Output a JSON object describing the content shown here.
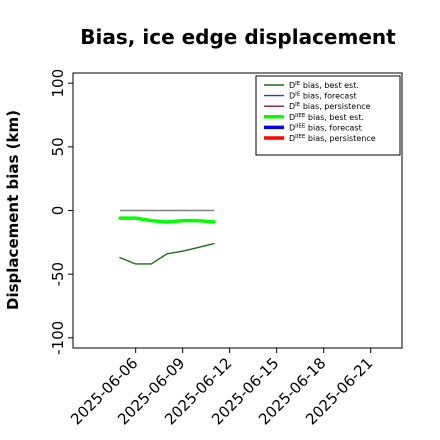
{
  "chart_data": {
    "type": "line",
    "title": "Bias, ice edge displacement",
    "xlabel": "",
    "ylabel": "Displacement bias (km)",
    "ylim": [
      -108,
      108
    ],
    "xlim": [
      "2025-06-02",
      "2025-06-23"
    ],
    "y_ticks": [
      "100",
      "50",
      "0",
      "-50",
      "-100"
    ],
    "x_ticks": [
      {
        "label": "2025-06-06",
        "date": "2025-06-06",
        "color": "#000000"
      },
      {
        "label": "2025-06-09",
        "date": "2025-06-09",
        "color": "#000000"
      },
      {
        "label": "2025-06-12",
        "date": "2025-06-12",
        "color": "#228B22"
      },
      {
        "label": "2025-06-15",
        "date": "2025-06-15",
        "color": "#000000"
      },
      {
        "label": "2025-06-18",
        "date": "2025-06-18",
        "color": "#000000"
      },
      {
        "label": "2025-06-21",
        "date": "2025-06-21",
        "color": "#000000"
      }
    ],
    "grid": false,
    "legend_position": "top-right",
    "series": [
      {
        "name": "D^IE bias, best est.",
        "sup": "IE",
        "label": " bias, best est.",
        "color": "#1a6e1a",
        "width": 1.4,
        "x": [
          "2025-06-05",
          "2025-06-06",
          "2025-06-07",
          "2025-06-08",
          "2025-06-09",
          "2025-06-10",
          "2025-06-11"
        ],
        "y": [
          -37,
          -42,
          -42,
          -34,
          -32,
          -29,
          -26
        ]
      },
      {
        "name": "D^IE bias, forecast",
        "sup": "IE",
        "label": " bias, forecast",
        "color": "#1f3fbf",
        "width": 1.4,
        "x": [],
        "y": []
      },
      {
        "name": "D^IE bias, persistence",
        "sup": "IE",
        "label": " bias, persistence",
        "color": "#8b1a3a",
        "width": 1.4,
        "x": [],
        "y": []
      },
      {
        "name": "D^IIEE bias, best est.",
        "sup": "IIEE",
        "label": " bias, best est.",
        "color": "#00ff00",
        "width": 3.5,
        "x": [
          "2025-06-05",
          "2025-06-06",
          "2025-06-07",
          "2025-06-08",
          "2025-06-09",
          "2025-06-10",
          "2025-06-11"
        ],
        "y": [
          -6,
          -6,
          -8,
          -9,
          -8,
          -8,
          -9
        ]
      },
      {
        "name": "D^IIEE bias, forecast",
        "sup": "IIEE",
        "label": " bias, forecast",
        "color": "#0000ff",
        "width": 3.5,
        "x": [],
        "y": []
      },
      {
        "name": "D^IIEE bias, persistence",
        "sup": "IIEE",
        "label": " bias, persistence",
        "color": "#ff0000",
        "width": 3.5,
        "x": [],
        "y": []
      }
    ],
    "reference_line": {
      "y": 0,
      "x": [
        "2025-06-05",
        "2025-06-11"
      ],
      "color": "#808080"
    }
  }
}
